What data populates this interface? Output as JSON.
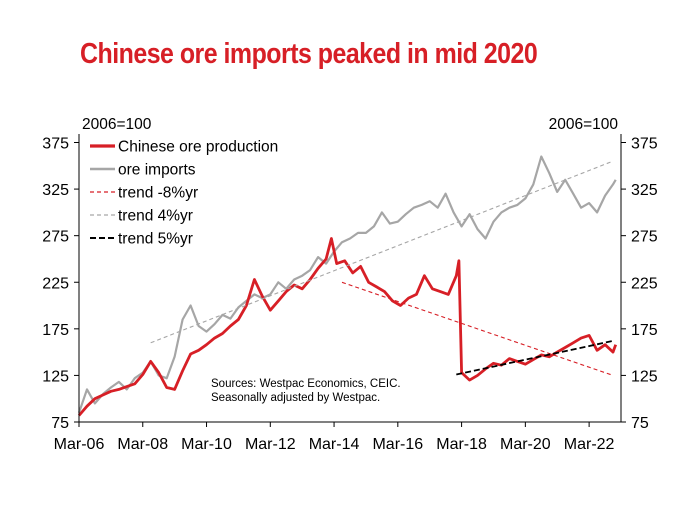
{
  "title": "Chinese ore imports peaked in mid 2020",
  "chart_data": {
    "type": "line",
    "title": "Chinese ore imports peaked in mid 2020",
    "y_left_label": "2006=100",
    "y_right_label": "2006=100",
    "ylim": [
      75,
      385
    ],
    "yticks": [
      75,
      125,
      175,
      225,
      275,
      325,
      375
    ],
    "x_range": [
      "2006-03",
      "2023-03"
    ],
    "x_ticks": [
      "Mar-06",
      "Mar-08",
      "Mar-10",
      "Mar-12",
      "Mar-14",
      "Mar-16",
      "Mar-18",
      "Mar-20",
      "Mar-22"
    ],
    "grid": false,
    "legend_position": "top-left",
    "note": [
      "Sources: Westpac Economics, CEIC.",
      "Seasonally adjusted by Westpac."
    ],
    "colors": {
      "production": "#d71f26",
      "imports": "#a6a6a6",
      "trend_black": "#000000"
    },
    "series": [
      {
        "name": "Chinese ore production",
        "style": "solid",
        "x": [
          "2006-03",
          "2006-06",
          "2006-09",
          "2006-12",
          "2007-03",
          "2007-06",
          "2007-09",
          "2007-12",
          "2008-03",
          "2008-06",
          "2008-09",
          "2008-12",
          "2009-03",
          "2009-06",
          "2009-09",
          "2009-12",
          "2010-03",
          "2010-06",
          "2010-09",
          "2010-12",
          "2011-03",
          "2011-06",
          "2011-09",
          "2011-12",
          "2012-03",
          "2012-06",
          "2012-09",
          "2012-12",
          "2013-03",
          "2013-06",
          "2013-09",
          "2013-12",
          "2014-02",
          "2014-04",
          "2014-07",
          "2014-10",
          "2015-01",
          "2015-04",
          "2015-07",
          "2015-10",
          "2016-01",
          "2016-04",
          "2016-07",
          "2016-10",
          "2017-01",
          "2017-04",
          "2017-07",
          "2017-10",
          "2018-01",
          "2018-02",
          "2018-03",
          "2018-06",
          "2018-09",
          "2018-12",
          "2019-03",
          "2019-06",
          "2019-09",
          "2019-12",
          "2020-03",
          "2020-06",
          "2020-09",
          "2020-12",
          "2021-03",
          "2021-06",
          "2021-09",
          "2021-12",
          "2022-03",
          "2022-06",
          "2022-09",
          "2022-12",
          "2023-01"
        ],
        "values": [
          82,
          92,
          100,
          104,
          108,
          110,
          113,
          116,
          126,
          140,
          128,
          112,
          110,
          130,
          148,
          152,
          158,
          165,
          170,
          178,
          185,
          200,
          228,
          210,
          195,
          205,
          215,
          222,
          218,
          228,
          240,
          250,
          272,
          245,
          248,
          235,
          242,
          225,
          220,
          215,
          205,
          200,
          208,
          212,
          232,
          218,
          215,
          212,
          232,
          248,
          128,
          120,
          125,
          132,
          138,
          136,
          143,
          140,
          137,
          142,
          147,
          145,
          150,
          155,
          160,
          165,
          168,
          152,
          158,
          150,
          158
        ]
      },
      {
        "name": "ore imports",
        "style": "solid",
        "x": [
          "2006-03",
          "2006-06",
          "2006-09",
          "2006-12",
          "2007-03",
          "2007-06",
          "2007-09",
          "2007-12",
          "2008-03",
          "2008-06",
          "2008-09",
          "2008-12",
          "2009-03",
          "2009-06",
          "2009-09",
          "2009-12",
          "2010-03",
          "2010-06",
          "2010-09",
          "2010-12",
          "2011-03",
          "2011-06",
          "2011-09",
          "2011-12",
          "2012-03",
          "2012-06",
          "2012-09",
          "2012-12",
          "2013-03",
          "2013-06",
          "2013-09",
          "2013-12",
          "2014-03",
          "2014-06",
          "2014-09",
          "2014-12",
          "2015-03",
          "2015-06",
          "2015-09",
          "2015-12",
          "2016-03",
          "2016-06",
          "2016-09",
          "2016-12",
          "2017-03",
          "2017-06",
          "2017-09",
          "2017-12",
          "2018-03",
          "2018-06",
          "2018-09",
          "2018-12",
          "2019-03",
          "2019-06",
          "2019-09",
          "2019-12",
          "2020-03",
          "2020-06",
          "2020-09",
          "2020-12",
          "2021-03",
          "2021-06",
          "2021-09",
          "2021-12",
          "2022-03",
          "2022-06",
          "2022-09",
          "2022-12",
          "2023-01"
        ],
        "values": [
          85,
          110,
          95,
          105,
          112,
          118,
          110,
          122,
          128,
          140,
          125,
          122,
          145,
          185,
          200,
          178,
          172,
          180,
          190,
          186,
          198,
          205,
          212,
          208,
          212,
          225,
          218,
          228,
          232,
          238,
          252,
          245,
          258,
          268,
          272,
          278,
          278,
          285,
          300,
          288,
          290,
          298,
          305,
          308,
          312,
          305,
          320,
          300,
          285,
          298,
          282,
          272,
          290,
          300,
          305,
          308,
          315,
          330,
          360,
          342,
          322,
          335,
          320,
          305,
          310,
          300,
          318,
          330,
          335
        ]
      },
      {
        "name": "trend -8%yr",
        "style": "dashed",
        "x": [
          "2014-06",
          "2022-12"
        ],
        "values": [
          225,
          125
        ]
      },
      {
        "name": "trend 4%yr",
        "style": "dashed",
        "x": [
          "2008-06",
          "2022-12"
        ],
        "values": [
          160,
          355
        ]
      },
      {
        "name": "trend 5%yr",
        "style": "dashed",
        "x": [
          "2018-01",
          "2022-12"
        ],
        "values": [
          126,
          162
        ]
      }
    ]
  }
}
